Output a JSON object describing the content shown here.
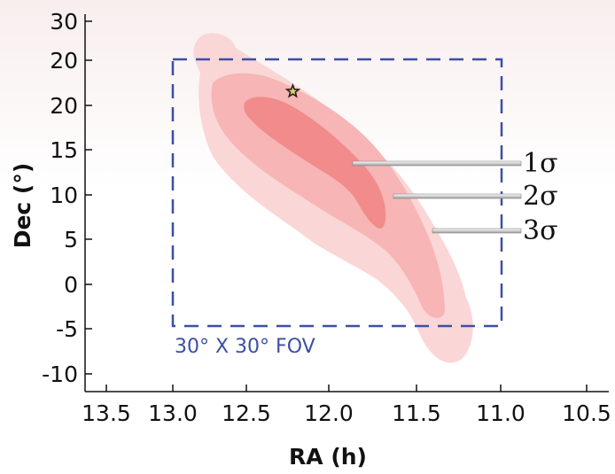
{
  "chart_data": {
    "type": "contour",
    "title": "",
    "xlabel": "RA (h)",
    "ylabel": "Dec (°)",
    "x_ticks": [
      "13.5",
      "13.0",
      "12.5",
      "12.0",
      "11.5",
      "11.0",
      "10.5"
    ],
    "y_ticks": [
      "30",
      "20",
      "20",
      "15",
      "10",
      "5",
      "0",
      "-5",
      "-10"
    ],
    "x_range": [
      13.5,
      10.5
    ],
    "x_reversed": true,
    "y_range": [
      -13,
      30
    ],
    "best_fit": {
      "ra": 12.27,
      "dec": 17
    },
    "contours": [
      {
        "label": "3σ",
        "color": "#fbd6d6"
      },
      {
        "label": "2σ",
        "color": "#f7b5b5"
      },
      {
        "label": "1σ",
        "color": "#f28b8b"
      }
    ],
    "fov": {
      "label": "30° X 30° FOV",
      "ra_range": [
        13.0,
        11.0
      ],
      "dec_range": [
        -5,
        20
      ],
      "color": "#3c4fa3"
    }
  }
}
